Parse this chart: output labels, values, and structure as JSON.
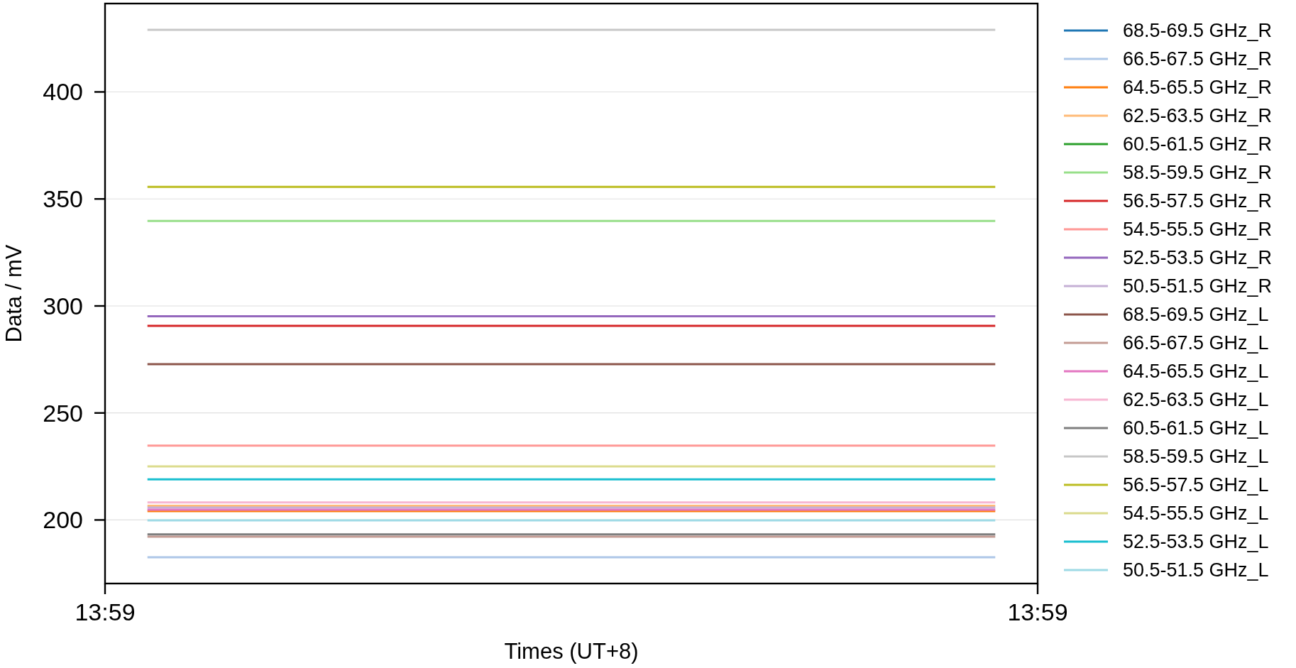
{
  "chart_data": {
    "type": "line",
    "xlabel": "Times (UT+8)",
    "ylabel": "Data / mV",
    "categories": [
      "13:59",
      null,
      null,
      null,
      null,
      null,
      null,
      null,
      null,
      null,
      null,
      null,
      null,
      null,
      null,
      null,
      null,
      null,
      null,
      null,
      null,
      null,
      "13:59"
    ],
    "ylim": [
      170.3,
      441.3
    ],
    "yticks": [
      200,
      250,
      300,
      350,
      400
    ],
    "grid": "y",
    "legend": "right",
    "series": [
      {
        "name": "68.5-69.5 GHz_R",
        "color": "#1f77b4",
        "values": [
          null,
          null,
          null,
          null,
          null,
          null,
          null,
          null,
          null,
          null,
          null,
          null,
          null,
          null,
          null,
          null,
          null,
          null,
          null,
          null,
          null,
          null,
          null
        ]
      },
      {
        "name": "66.5-67.5 GHz_R",
        "color": "#aec7e8",
        "values": [
          null,
          182.6,
          182.6,
          182.6,
          182.6,
          182.6,
          182.6,
          182.6,
          182.6,
          182.6,
          182.6,
          182.6,
          182.6,
          182.6,
          182.6,
          182.6,
          182.6,
          182.6,
          182.6,
          182.6,
          182.6,
          182.6,
          null
        ]
      },
      {
        "name": "64.5-65.5 GHz_R",
        "color": "#ff7f0e",
        "values": [
          null,
          204.1,
          204.1,
          204.1,
          204.1,
          204.1,
          204.1,
          204.1,
          204.1,
          204.1,
          204.1,
          204.1,
          204.1,
          204.1,
          204.1,
          204.1,
          204.1,
          204.1,
          204.1,
          204.1,
          204.1,
          204.1,
          null
        ]
      },
      {
        "name": "62.5-63.5 GHz_R",
        "color": "#ffbb78",
        "values": [
          null,
          206.6,
          206.6,
          206.6,
          206.6,
          206.6,
          206.6,
          206.6,
          206.6,
          206.6,
          206.6,
          206.6,
          206.6,
          206.6,
          206.6,
          206.6,
          206.6,
          206.6,
          206.6,
          206.6,
          206.6,
          206.6,
          null
        ]
      },
      {
        "name": "60.5-61.5 GHz_R",
        "color": "#2ca02c",
        "values": [
          null,
          null,
          null,
          null,
          null,
          null,
          null,
          null,
          null,
          null,
          null,
          null,
          null,
          null,
          null,
          null,
          null,
          null,
          null,
          null,
          null,
          null,
          null
        ]
      },
      {
        "name": "58.5-59.5 GHz_R",
        "color": "#98df8a",
        "values": [
          null,
          339.7,
          339.7,
          339.7,
          339.7,
          339.7,
          339.7,
          339.7,
          339.7,
          339.7,
          339.7,
          339.7,
          339.7,
          339.7,
          339.7,
          339.7,
          339.7,
          339.7,
          339.7,
          339.7,
          339.7,
          339.7,
          null
        ]
      },
      {
        "name": "56.5-57.5 GHz_R",
        "color": "#d62728",
        "values": [
          null,
          290.7,
          290.7,
          290.7,
          290.7,
          290.7,
          290.7,
          290.7,
          290.7,
          290.7,
          290.7,
          290.7,
          290.7,
          290.7,
          290.7,
          290.7,
          290.7,
          290.7,
          290.7,
          290.7,
          290.7,
          290.7,
          null
        ]
      },
      {
        "name": "54.5-55.5 GHz_R",
        "color": "#ff9896",
        "values": [
          null,
          234.7,
          234.7,
          234.7,
          234.7,
          234.7,
          234.7,
          234.7,
          234.7,
          234.7,
          234.7,
          234.7,
          234.7,
          234.7,
          234.7,
          234.7,
          234.7,
          234.7,
          234.7,
          234.7,
          234.7,
          234.7,
          null
        ]
      },
      {
        "name": "52.5-53.5 GHz_R",
        "color": "#9467bd",
        "values": [
          null,
          295.2,
          295.2,
          295.2,
          295.2,
          295.2,
          295.2,
          295.2,
          295.2,
          295.2,
          295.2,
          295.2,
          295.2,
          295.2,
          295.2,
          295.2,
          295.2,
          295.2,
          295.2,
          295.2,
          295.2,
          295.2,
          null
        ]
      },
      {
        "name": "50.5-51.5 GHz_R",
        "color": "#c5b0d5",
        "values": [
          null,
          205.8,
          205.8,
          205.8,
          205.8,
          205.8,
          205.8,
          205.8,
          205.8,
          205.8,
          205.8,
          205.8,
          205.8,
          205.8,
          205.8,
          205.8,
          205.8,
          205.8,
          205.8,
          205.8,
          205.8,
          205.8,
          null
        ]
      },
      {
        "name": "68.5-69.5 GHz_L",
        "color": "#8c564b",
        "values": [
          null,
          272.8,
          272.8,
          272.8,
          272.8,
          272.8,
          272.8,
          272.8,
          272.8,
          272.8,
          272.8,
          272.8,
          272.8,
          272.8,
          272.8,
          272.8,
          272.8,
          272.8,
          272.8,
          272.8,
          272.8,
          272.8,
          null
        ]
      },
      {
        "name": "66.5-67.5 GHz_L",
        "color": "#c49c94",
        "values": [
          null,
          192.2,
          192.2,
          192.2,
          192.2,
          192.2,
          192.2,
          192.2,
          192.2,
          192.2,
          192.2,
          192.2,
          192.2,
          192.2,
          192.2,
          192.2,
          192.2,
          192.2,
          192.2,
          192.2,
          192.2,
          192.2,
          null
        ]
      },
      {
        "name": "64.5-65.5 GHz_L",
        "color": "#e377c2",
        "values": [
          null,
          204.8,
          204.8,
          204.8,
          204.8,
          204.8,
          204.8,
          204.8,
          204.8,
          204.8,
          204.8,
          204.8,
          204.8,
          204.8,
          204.8,
          204.8,
          204.8,
          204.8,
          204.8,
          204.8,
          204.8,
          204.8,
          null
        ]
      },
      {
        "name": "62.5-63.5 GHz_L",
        "color": "#f7b6d2",
        "values": [
          null,
          208.2,
          208.2,
          208.2,
          208.2,
          208.2,
          208.2,
          208.2,
          208.2,
          208.2,
          208.2,
          208.2,
          208.2,
          208.2,
          208.2,
          208.2,
          208.2,
          208.2,
          208.2,
          208.2,
          208.2,
          208.2,
          null
        ]
      },
      {
        "name": "60.5-61.5 GHz_L",
        "color": "#7f7f7f",
        "values": [
          null,
          193.3,
          193.3,
          193.3,
          193.3,
          193.3,
          193.3,
          193.3,
          193.3,
          193.3,
          193.3,
          193.3,
          193.3,
          193.3,
          193.3,
          193.3,
          193.3,
          193.3,
          193.3,
          193.3,
          193.3,
          193.3,
          null
        ]
      },
      {
        "name": "58.5-59.5 GHz_L",
        "color": "#c7c7c7",
        "values": [
          null,
          429,
          429,
          429,
          429,
          429,
          429,
          429,
          429,
          429,
          429,
          429,
          429,
          429,
          429,
          429,
          429,
          429,
          429,
          429,
          429,
          429,
          null
        ]
      },
      {
        "name": "56.5-57.5 GHz_L",
        "color": "#bcbd22",
        "values": [
          null,
          355.6,
          355.6,
          355.6,
          355.6,
          355.6,
          355.6,
          355.6,
          355.6,
          355.6,
          355.6,
          355.6,
          355.6,
          355.6,
          355.6,
          355.6,
          355.6,
          355.6,
          355.6,
          355.6,
          355.6,
          355.6,
          null
        ]
      },
      {
        "name": "54.5-55.5 GHz_L",
        "color": "#dbdb8d",
        "values": [
          null,
          225,
          225,
          225,
          225,
          225,
          225,
          225,
          225,
          225,
          225,
          225,
          225,
          225,
          225,
          225,
          225,
          225,
          225,
          225,
          225,
          225,
          null
        ]
      },
      {
        "name": "52.5-53.5 GHz_L",
        "color": "#17becf",
        "values": [
          null,
          219,
          219,
          219,
          219,
          219,
          219,
          219,
          219,
          219,
          219,
          219,
          219,
          219,
          219,
          219,
          219,
          219,
          219,
          219,
          219,
          219,
          null
        ]
      },
      {
        "name": "50.5-51.5 GHz_L",
        "color": "#9edae5",
        "values": [
          null,
          199.8,
          199.8,
          199.8,
          199.8,
          199.8,
          199.8,
          199.8,
          199.8,
          199.8,
          199.8,
          199.8,
          199.8,
          199.8,
          199.8,
          199.8,
          199.8,
          199.8,
          199.8,
          199.8,
          199.8,
          199.8,
          null
        ]
      }
    ]
  }
}
